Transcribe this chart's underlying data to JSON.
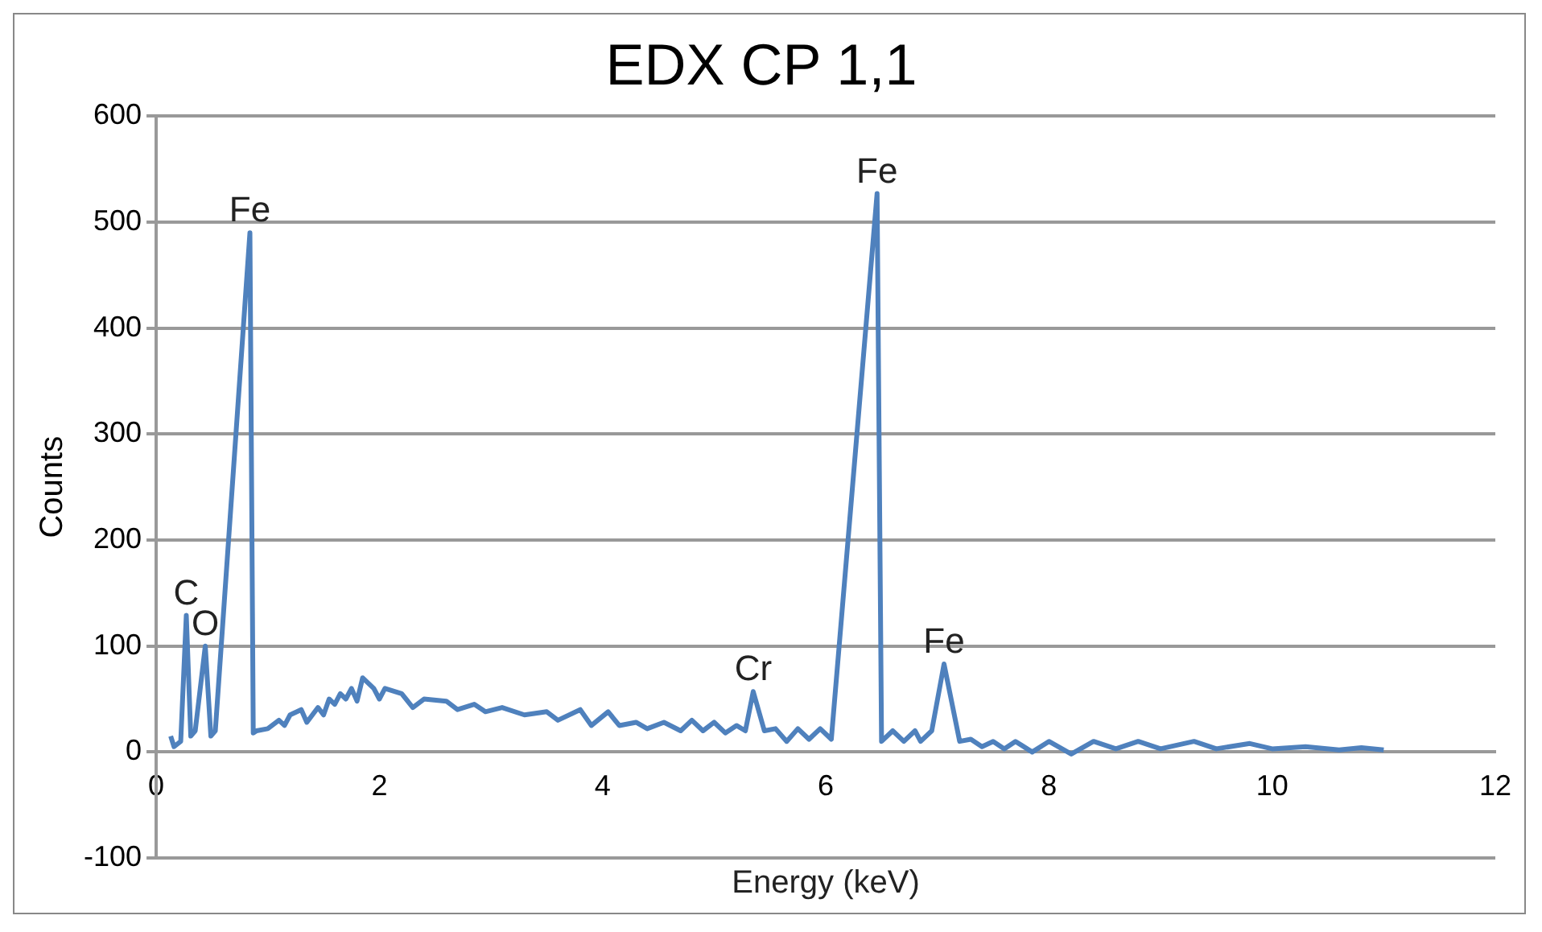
{
  "chart_data": {
    "type": "line",
    "title": "EDX CP 1,1",
    "xlabel": "Energy (keV)",
    "ylabel": "Counts",
    "xlim": [
      0,
      12
    ],
    "xticks": [
      0,
      2,
      4,
      6,
      8,
      10,
      12
    ],
    "ylim": [
      -100,
      600
    ],
    "yticks": [
      -100,
      0,
      100,
      200,
      300,
      400,
      500,
      600
    ],
    "grid": "y",
    "legend": false,
    "marker": "none",
    "line_style": "solid",
    "series": [
      {
        "color": "#4f81bd",
        "x": [
          0.13,
          0.16,
          0.22,
          0.27,
          0.31,
          0.35,
          0.44,
          0.49,
          0.53,
          0.84,
          0.87,
          0.9,
          1.0,
          1.1,
          1.15,
          1.2,
          1.3,
          1.35,
          1.45,
          1.5,
          1.55,
          1.6,
          1.65,
          1.7,
          1.75,
          1.8,
          1.85,
          1.95,
          2.0,
          2.05,
          2.2,
          2.3,
          2.4,
          2.6,
          2.7,
          2.85,
          2.95,
          3.1,
          3.3,
          3.5,
          3.6,
          3.8,
          3.9,
          4.05,
          4.15,
          4.3,
          4.4,
          4.55,
          4.7,
          4.8,
          4.9,
          5.0,
          5.1,
          5.2,
          5.28,
          5.35,
          5.45,
          5.55,
          5.65,
          5.75,
          5.85,
          5.95,
          6.05,
          6.46,
          6.5,
          6.6,
          6.7,
          6.8,
          6.85,
          6.95,
          7.06,
          7.2,
          7.3,
          7.4,
          7.5,
          7.6,
          7.7,
          7.85,
          8.0,
          8.2,
          8.4,
          8.6,
          8.8,
          9.0,
          9.3,
          9.5,
          9.8,
          10.0,
          10.3,
          10.6,
          10.8,
          11.0
        ],
        "values": [
          15,
          5,
          10,
          129,
          15,
          20,
          100,
          15,
          20,
          490,
          18,
          20,
          22,
          30,
          25,
          35,
          40,
          28,
          42,
          35,
          50,
          45,
          55,
          50,
          60,
          48,
          70,
          60,
          50,
          60,
          55,
          42,
          50,
          48,
          40,
          45,
          38,
          42,
          35,
          38,
          30,
          40,
          25,
          38,
          25,
          28,
          22,
          28,
          20,
          30,
          20,
          28,
          18,
          25,
          20,
          57,
          20,
          22,
          10,
          22,
          12,
          22,
          12,
          527,
          10,
          20,
          10,
          20,
          10,
          20,
          83,
          10,
          12,
          5,
          10,
          3,
          10,
          0,
          10,
          -2,
          10,
          3,
          10,
          3,
          10,
          3,
          8,
          3,
          5,
          2,
          4,
          2
        ]
      }
    ],
    "annotations": [
      {
        "text": "C",
        "x": 0.27,
        "y": 129
      },
      {
        "text": "O",
        "x": 0.44,
        "y": 100
      },
      {
        "text": "Fe",
        "x": 0.84,
        "y": 490
      },
      {
        "text": "Cr",
        "x": 5.35,
        "y": 57
      },
      {
        "text": "Fe",
        "x": 6.46,
        "y": 527
      },
      {
        "text": "Fe",
        "x": 7.06,
        "y": 83
      }
    ]
  }
}
